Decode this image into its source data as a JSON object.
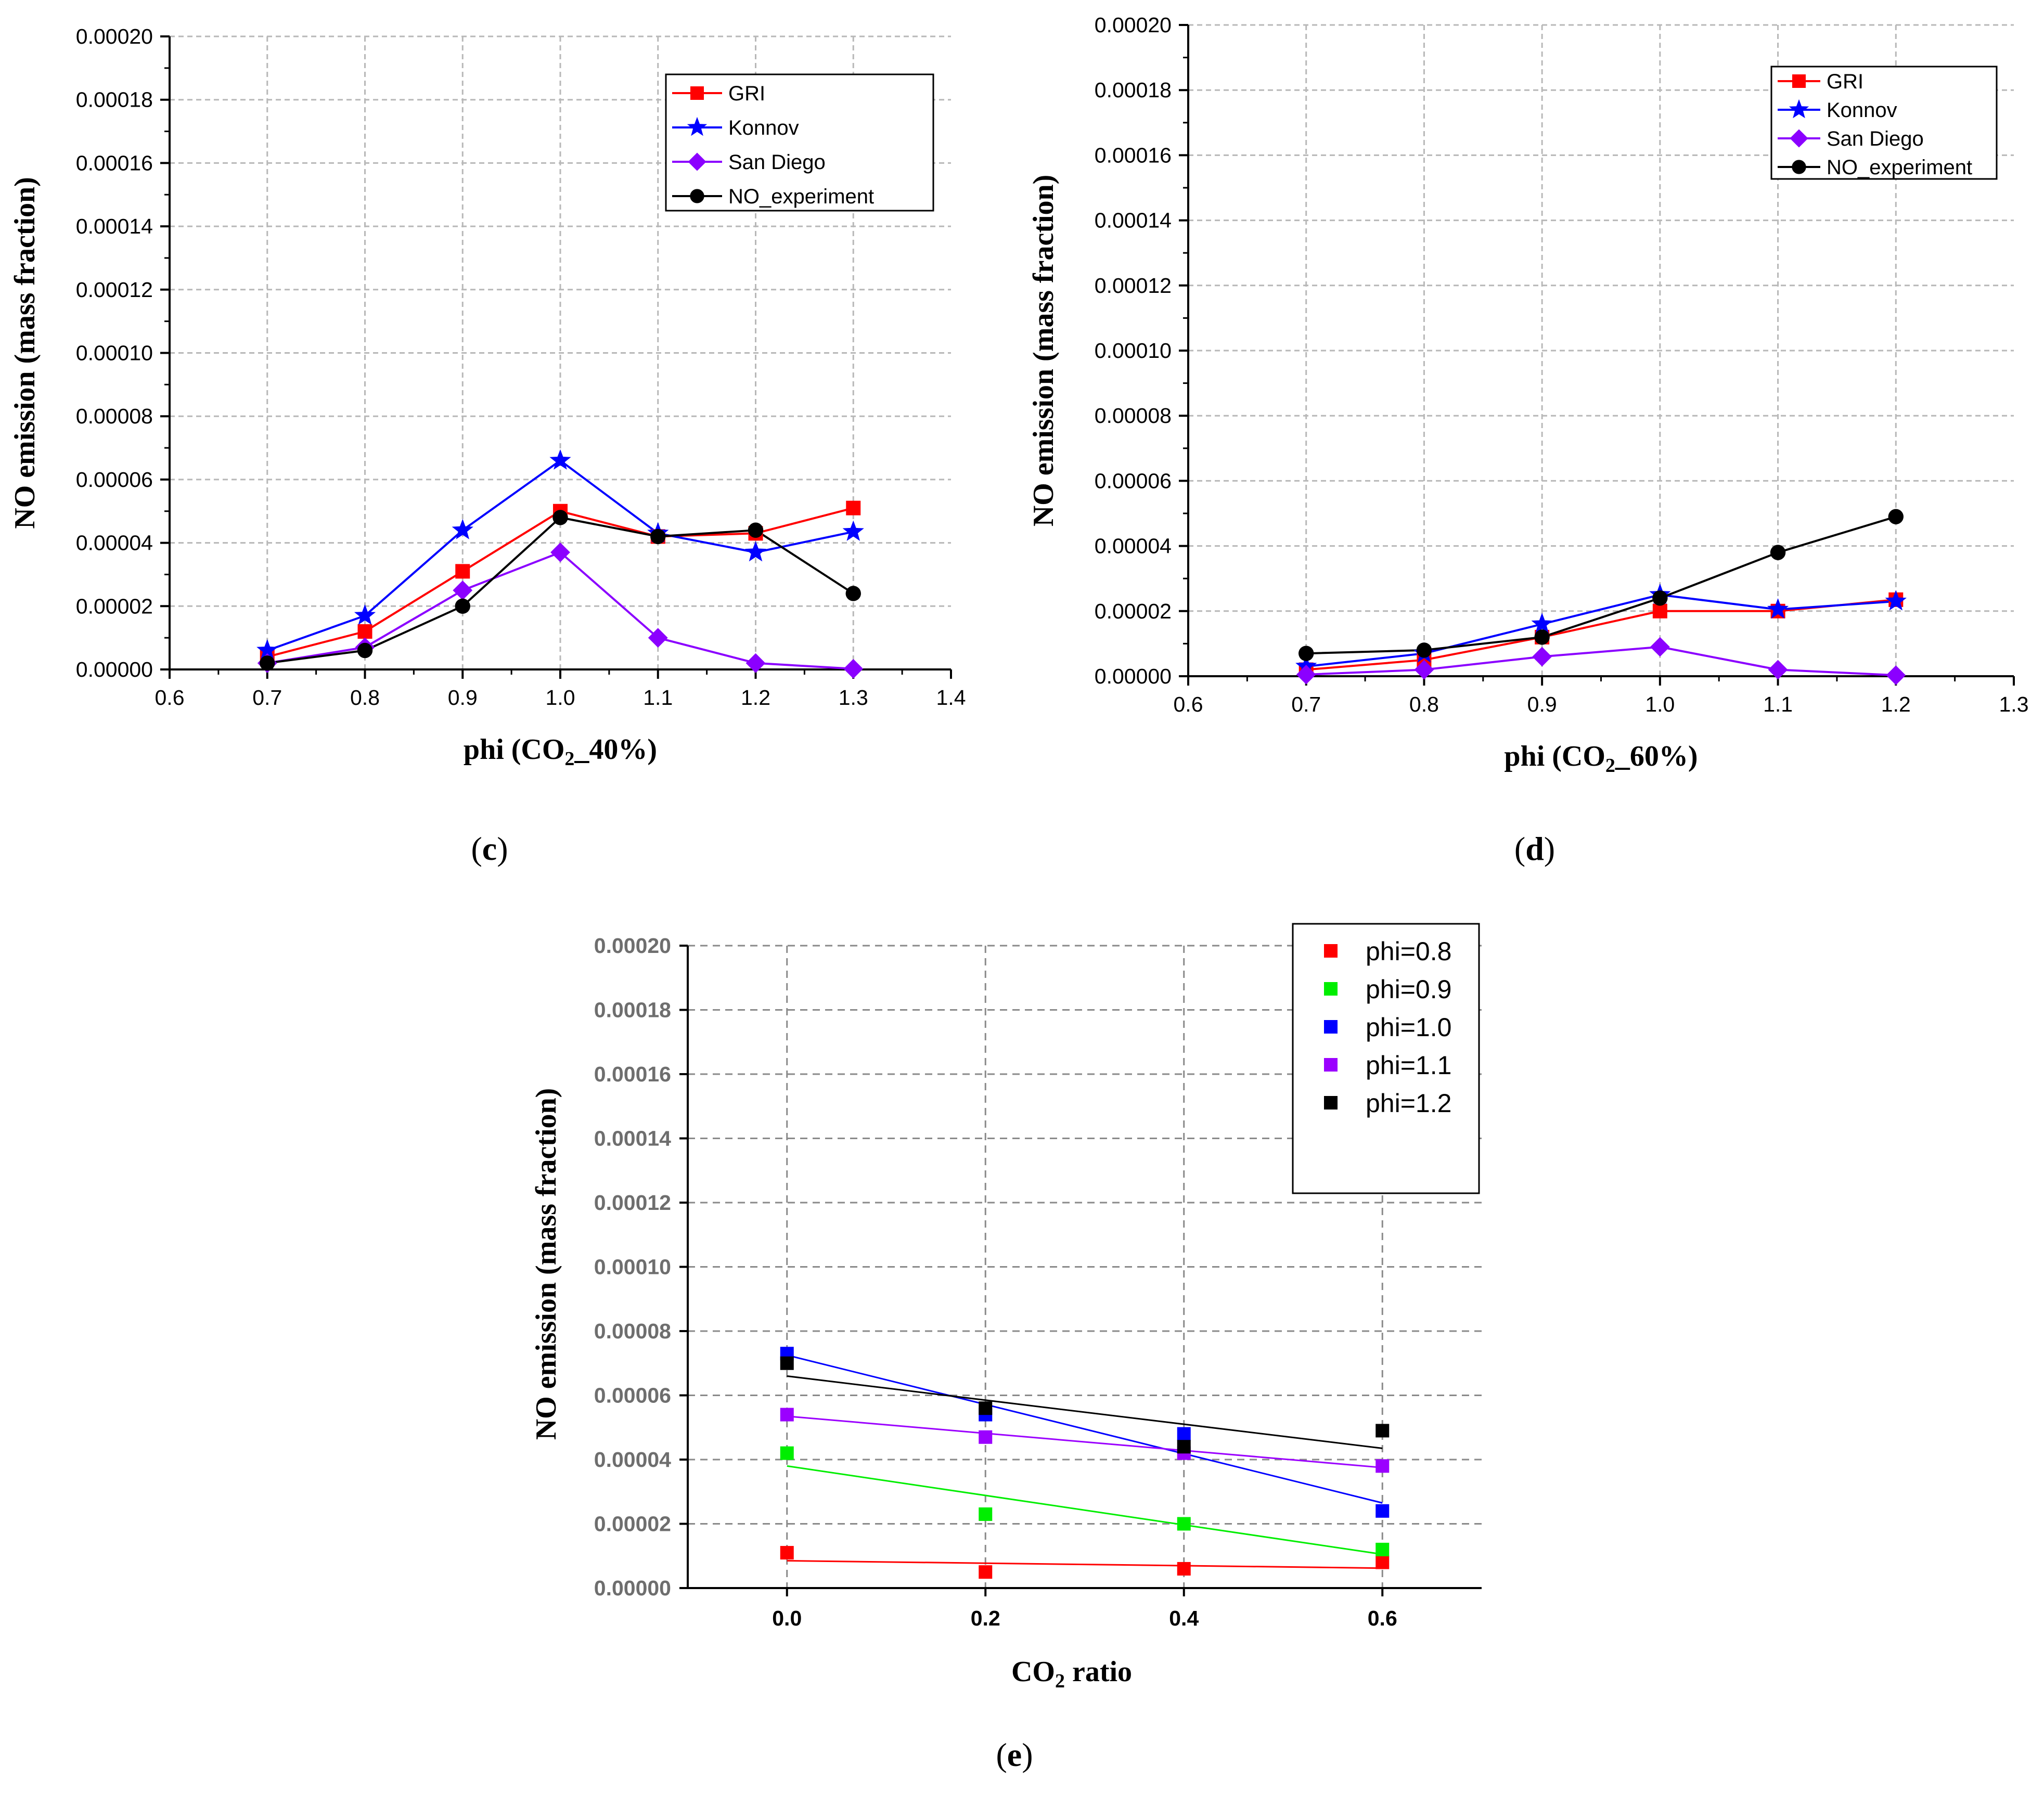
{
  "chart_data": [
    {
      "panel": "c",
      "type": "line",
      "xlabel": "phi (CO2_40%)",
      "xlabel_main": "phi (CO",
      "xlabel_sub": "2",
      "xlabel_tail": "_40%)",
      "ylabel": "NO emission (mass fraction)",
      "xlim": [
        0.6,
        1.4
      ],
      "ylim": [
        0,
        0.0002
      ],
      "xticks": [
        "0.6",
        "0.7",
        "0.8",
        "0.9",
        "1.0",
        "1.1",
        "1.2",
        "1.3",
        "1.4"
      ],
      "yticks": [
        "0.00000",
        "0.00002",
        "0.00004",
        "0.00006",
        "0.00008",
        "0.00010",
        "0.00012",
        "0.00014",
        "0.00016",
        "0.00018",
        "0.00020"
      ],
      "x": [
        0.7,
        0.8,
        0.9,
        1.0,
        1.1,
        1.2,
        1.3
      ],
      "series": [
        {
          "name": "GRI",
          "color": "#ff0000",
          "marker": "square",
          "values": [
            4e-06,
            1.2e-05,
            3.1e-05,
            5e-05,
            4.2e-05,
            4.3e-05,
            5.1e-05
          ]
        },
        {
          "name": "Konnov",
          "color": "#0000ff",
          "marker": "star",
          "values": [
            6e-06,
            1.7e-05,
            4.4e-05,
            6.6e-05,
            4.3e-05,
            3.7e-05,
            4.35e-05
          ]
        },
        {
          "name": "San Diego",
          "color": "#8b00ff",
          "marker": "diamond",
          "values": [
            2e-06,
            7e-06,
            2.5e-05,
            3.7e-05,
            1e-05,
            2e-06,
            2e-07
          ]
        },
        {
          "name": "NO_experiment",
          "color": "#000000",
          "marker": "circle",
          "values": [
            2e-06,
            6e-06,
            2e-05,
            4.8e-05,
            4.2e-05,
            4.4e-05,
            2.4e-05
          ]
        }
      ],
      "panel_label": "c"
    },
    {
      "panel": "d",
      "type": "line",
      "xlabel": "phi (CO2_60%)",
      "xlabel_main": "phi (CO",
      "xlabel_sub": "2",
      "xlabel_tail": "_60%)",
      "ylabel": "NO emission (mass fraction)",
      "xlim": [
        0.6,
        1.3
      ],
      "ylim": [
        0,
        0.0002
      ],
      "xticks": [
        "0.6",
        "0.7",
        "0.8",
        "0.9",
        "1.0",
        "1.1",
        "1.2",
        "1.3"
      ],
      "yticks": [
        "0.00000",
        "0.00002",
        "0.00004",
        "0.00006",
        "0.00008",
        "0.00010",
        "0.00012",
        "0.00014",
        "0.00016",
        "0.00018",
        "0.00020"
      ],
      "x": [
        0.7,
        0.8,
        0.9,
        1.0,
        1.1,
        1.2
      ],
      "series": [
        {
          "name": "GRI",
          "color": "#ff0000",
          "marker": "square",
          "values": [
            2e-06,
            5e-06,
            1.2e-05,
            2e-05,
            2e-05,
            2.35e-05
          ]
        },
        {
          "name": "Konnov",
          "color": "#0000ff",
          "marker": "star",
          "values": [
            3e-06,
            7e-06,
            1.6e-05,
            2.5e-05,
            2.05e-05,
            2.3e-05
          ]
        },
        {
          "name": "San Diego",
          "color": "#8b00ff",
          "marker": "diamond",
          "values": [
            5e-07,
            2e-06,
            6e-06,
            9e-06,
            2e-06,
            3e-07
          ]
        },
        {
          "name": "NO_experiment",
          "color": "#000000",
          "marker": "circle",
          "values": [
            7e-06,
            8e-06,
            1.2e-05,
            2.4e-05,
            3.8e-05,
            4.9e-05
          ]
        }
      ],
      "panel_label": "d"
    },
    {
      "panel": "e",
      "type": "scatter",
      "xlabel": "CO2 ratio",
      "xlabel_main": "CO",
      "xlabel_sub": "2",
      "xlabel_tail": " ratio",
      "ylabel": "NO emission (mass fraction)",
      "xlim": [
        -0.1,
        0.7
      ],
      "ylim": [
        0,
        0.0002
      ],
      "xticks": [
        "0.0",
        "0.2",
        "0.4",
        "0.6"
      ],
      "yticks": [
        "0.00000",
        "0.00002",
        "0.00004",
        "0.00006",
        "0.00008",
        "0.00010",
        "0.00012",
        "0.00014",
        "0.00016",
        "0.00018",
        "0.00020"
      ],
      "x": [
        0.0,
        0.2,
        0.4,
        0.6
      ],
      "series": [
        {
          "name": "phi=0.8",
          "color": "#ff0000",
          "values": [
            1.1e-05,
            5e-06,
            6e-06,
            8e-06
          ],
          "fit": [
            8.5e-06,
            6.2e-06
          ]
        },
        {
          "name": "phi=0.9",
          "color": "#00ee00",
          "values": [
            4.2e-05,
            2.3e-05,
            2e-05,
            1.2e-05
          ],
          "fit": [
            3.8e-05,
            1.05e-05
          ]
        },
        {
          "name": "phi=1.0",
          "color": "#0000ff",
          "values": [
            7.3e-05,
            5.4e-05,
            4.8e-05,
            2.4e-05
          ],
          "fit": [
            7.25e-05,
            2.65e-05
          ]
        },
        {
          "name": "phi=1.1",
          "color": "#9b00ff",
          "values": [
            5.4e-05,
            4.7e-05,
            4.2e-05,
            3.8e-05
          ],
          "fit": [
            5.35e-05,
            3.75e-05
          ]
        },
        {
          "name": "phi=1.2",
          "color": "#000000",
          "values": [
            7e-05,
            5.6e-05,
            4.4e-05,
            4.9e-05
          ],
          "fit": [
            6.6e-05,
            4.35e-05
          ]
        }
      ],
      "panel_label": "e"
    }
  ]
}
